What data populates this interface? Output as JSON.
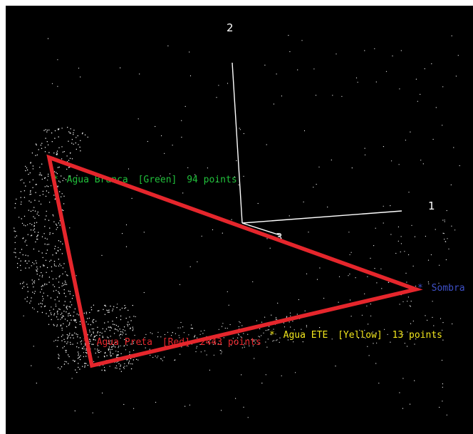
{
  "axes": {
    "labels": [
      "2",
      "1",
      "3"
    ],
    "color": "#ffffff"
  },
  "classes": [
    {
      "marker": "*",
      "name": "Agua Branca",
      "tag": "[Green]",
      "count_text": "94 points",
      "color": "#21c13b"
    },
    {
      "marker": "*",
      "name": "Agua Preta",
      "tag": "[Red]",
      "count_text": "2443 points",
      "color": "#e5262c"
    },
    {
      "marker": "*",
      "name": "Agua ETE",
      "tag": "[Yellow]",
      "count_text": "13 points",
      "color": "#f2e61c"
    },
    {
      "marker": "*",
      "name": "Sombra",
      "tag": "",
      "count_text": "",
      "color": "#3e50c8"
    }
  ],
  "simplex": {
    "color": "#e5262c"
  },
  "colors": {
    "background": "#000000",
    "points": "#ffffff"
  }
}
